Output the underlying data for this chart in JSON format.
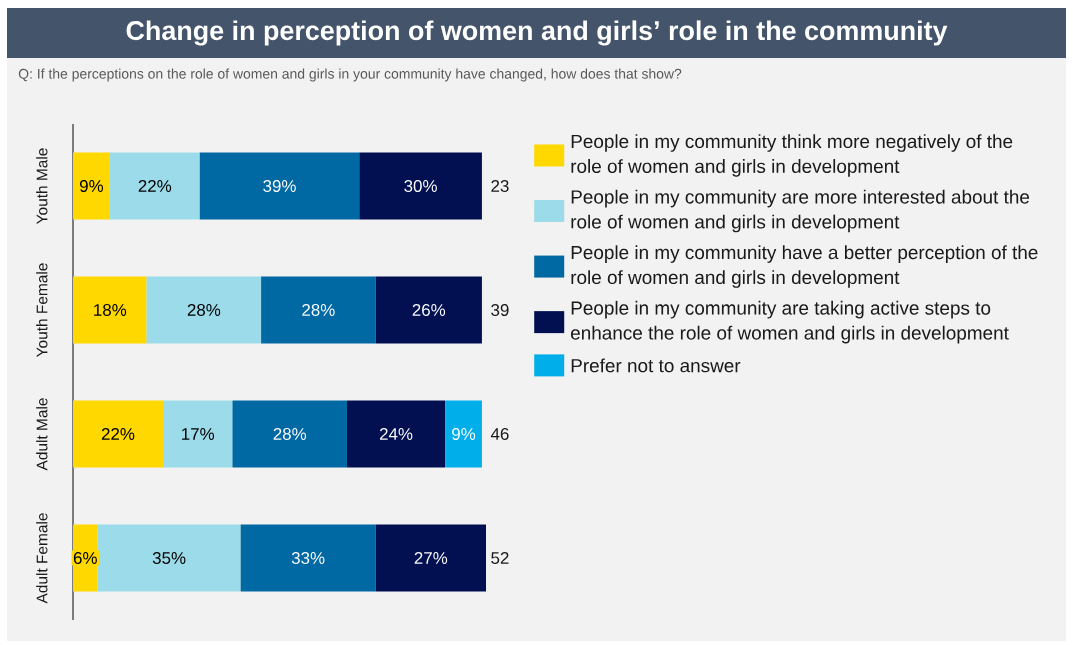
{
  "chart_data": {
    "type": "bar",
    "orientation": "horizontal",
    "stacked": true,
    "title": "Change in perception of women and girls’ role in the community",
    "subtitle": "Q: If the perceptions on the role of women and girls in your community have changed, how does that show?",
    "categories": [
      "Youth Male",
      "Youth Female",
      "Adult Male",
      "Adult Female"
    ],
    "series": [
      {
        "name": "People in my community think more negatively of the role of women and girls in development",
        "color": "#FFD800",
        "values": [
          9,
          18,
          22,
          6
        ],
        "value_labels": [
          "9%",
          "18%",
          "22%",
          "6%"
        ]
      },
      {
        "name": "People in my community are more interested about the role of women and girls in development",
        "color": "#9BDBEA",
        "values": [
          22,
          28,
          17,
          35
        ],
        "value_labels": [
          "22%",
          "28%",
          "17%",
          "35%"
        ]
      },
      {
        "name": "People in my community have a better perception of the role of women and girls in development",
        "color": "#0068A3",
        "values": [
          39,
          28,
          28,
          33
        ],
        "value_labels": [
          "39%",
          "28%",
          "28%",
          "33%"
        ]
      },
      {
        "name": "People in my community are taking active steps to enhance the role of women and girls in development",
        "color": "#021052",
        "values": [
          30,
          26,
          24,
          27
        ],
        "value_labels": [
          "30%",
          "26%",
          "24%",
          "27%"
        ]
      },
      {
        "name": "Prefer not to answer",
        "color": "#00AEEA",
        "values": [
          null,
          null,
          9,
          null
        ],
        "value_labels": [
          null,
          null,
          "9%",
          null
        ]
      }
    ],
    "annotations": [
      "23",
      "39",
      "46",
      "52"
    ],
    "legend": "right",
    "tick_labels": "y"
  }
}
